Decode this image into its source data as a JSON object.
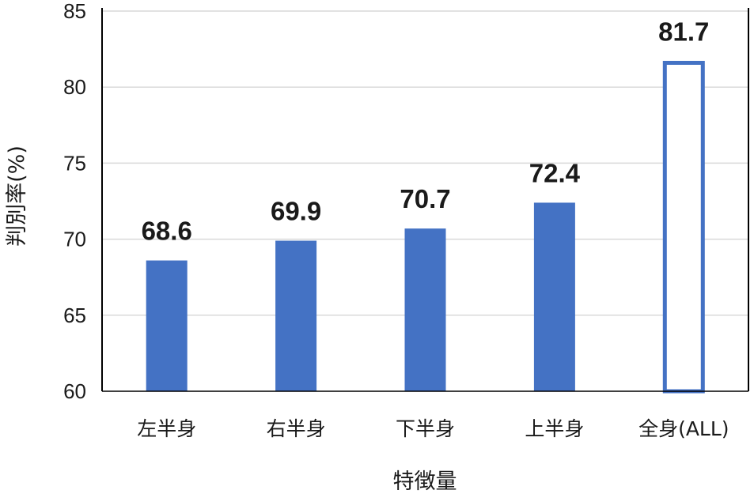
{
  "chart_data": {
    "type": "bar",
    "categories": [
      "左半身",
      "右半身",
      "下半身",
      "上半身",
      "全身(ALL)"
    ],
    "values": [
      68.6,
      69.9,
      70.7,
      72.4,
      81.7
    ],
    "data_labels": [
      "68.6",
      "69.9",
      "70.7",
      "72.4",
      "81.7"
    ],
    "xlabel": "特徴量",
    "ylabel": "判別率(%)",
    "ylim": [
      60,
      85
    ],
    "yticks": [
      60,
      65,
      70,
      75,
      80,
      85
    ],
    "grid": true,
    "legend": "none",
    "bar_styles": [
      "filled",
      "filled",
      "filled",
      "filled",
      "outline"
    ],
    "colors": {
      "bar": "#4472C4",
      "grid": "#d9d9d9",
      "axis": "#000000",
      "outline_fill": "#ffffff"
    }
  }
}
